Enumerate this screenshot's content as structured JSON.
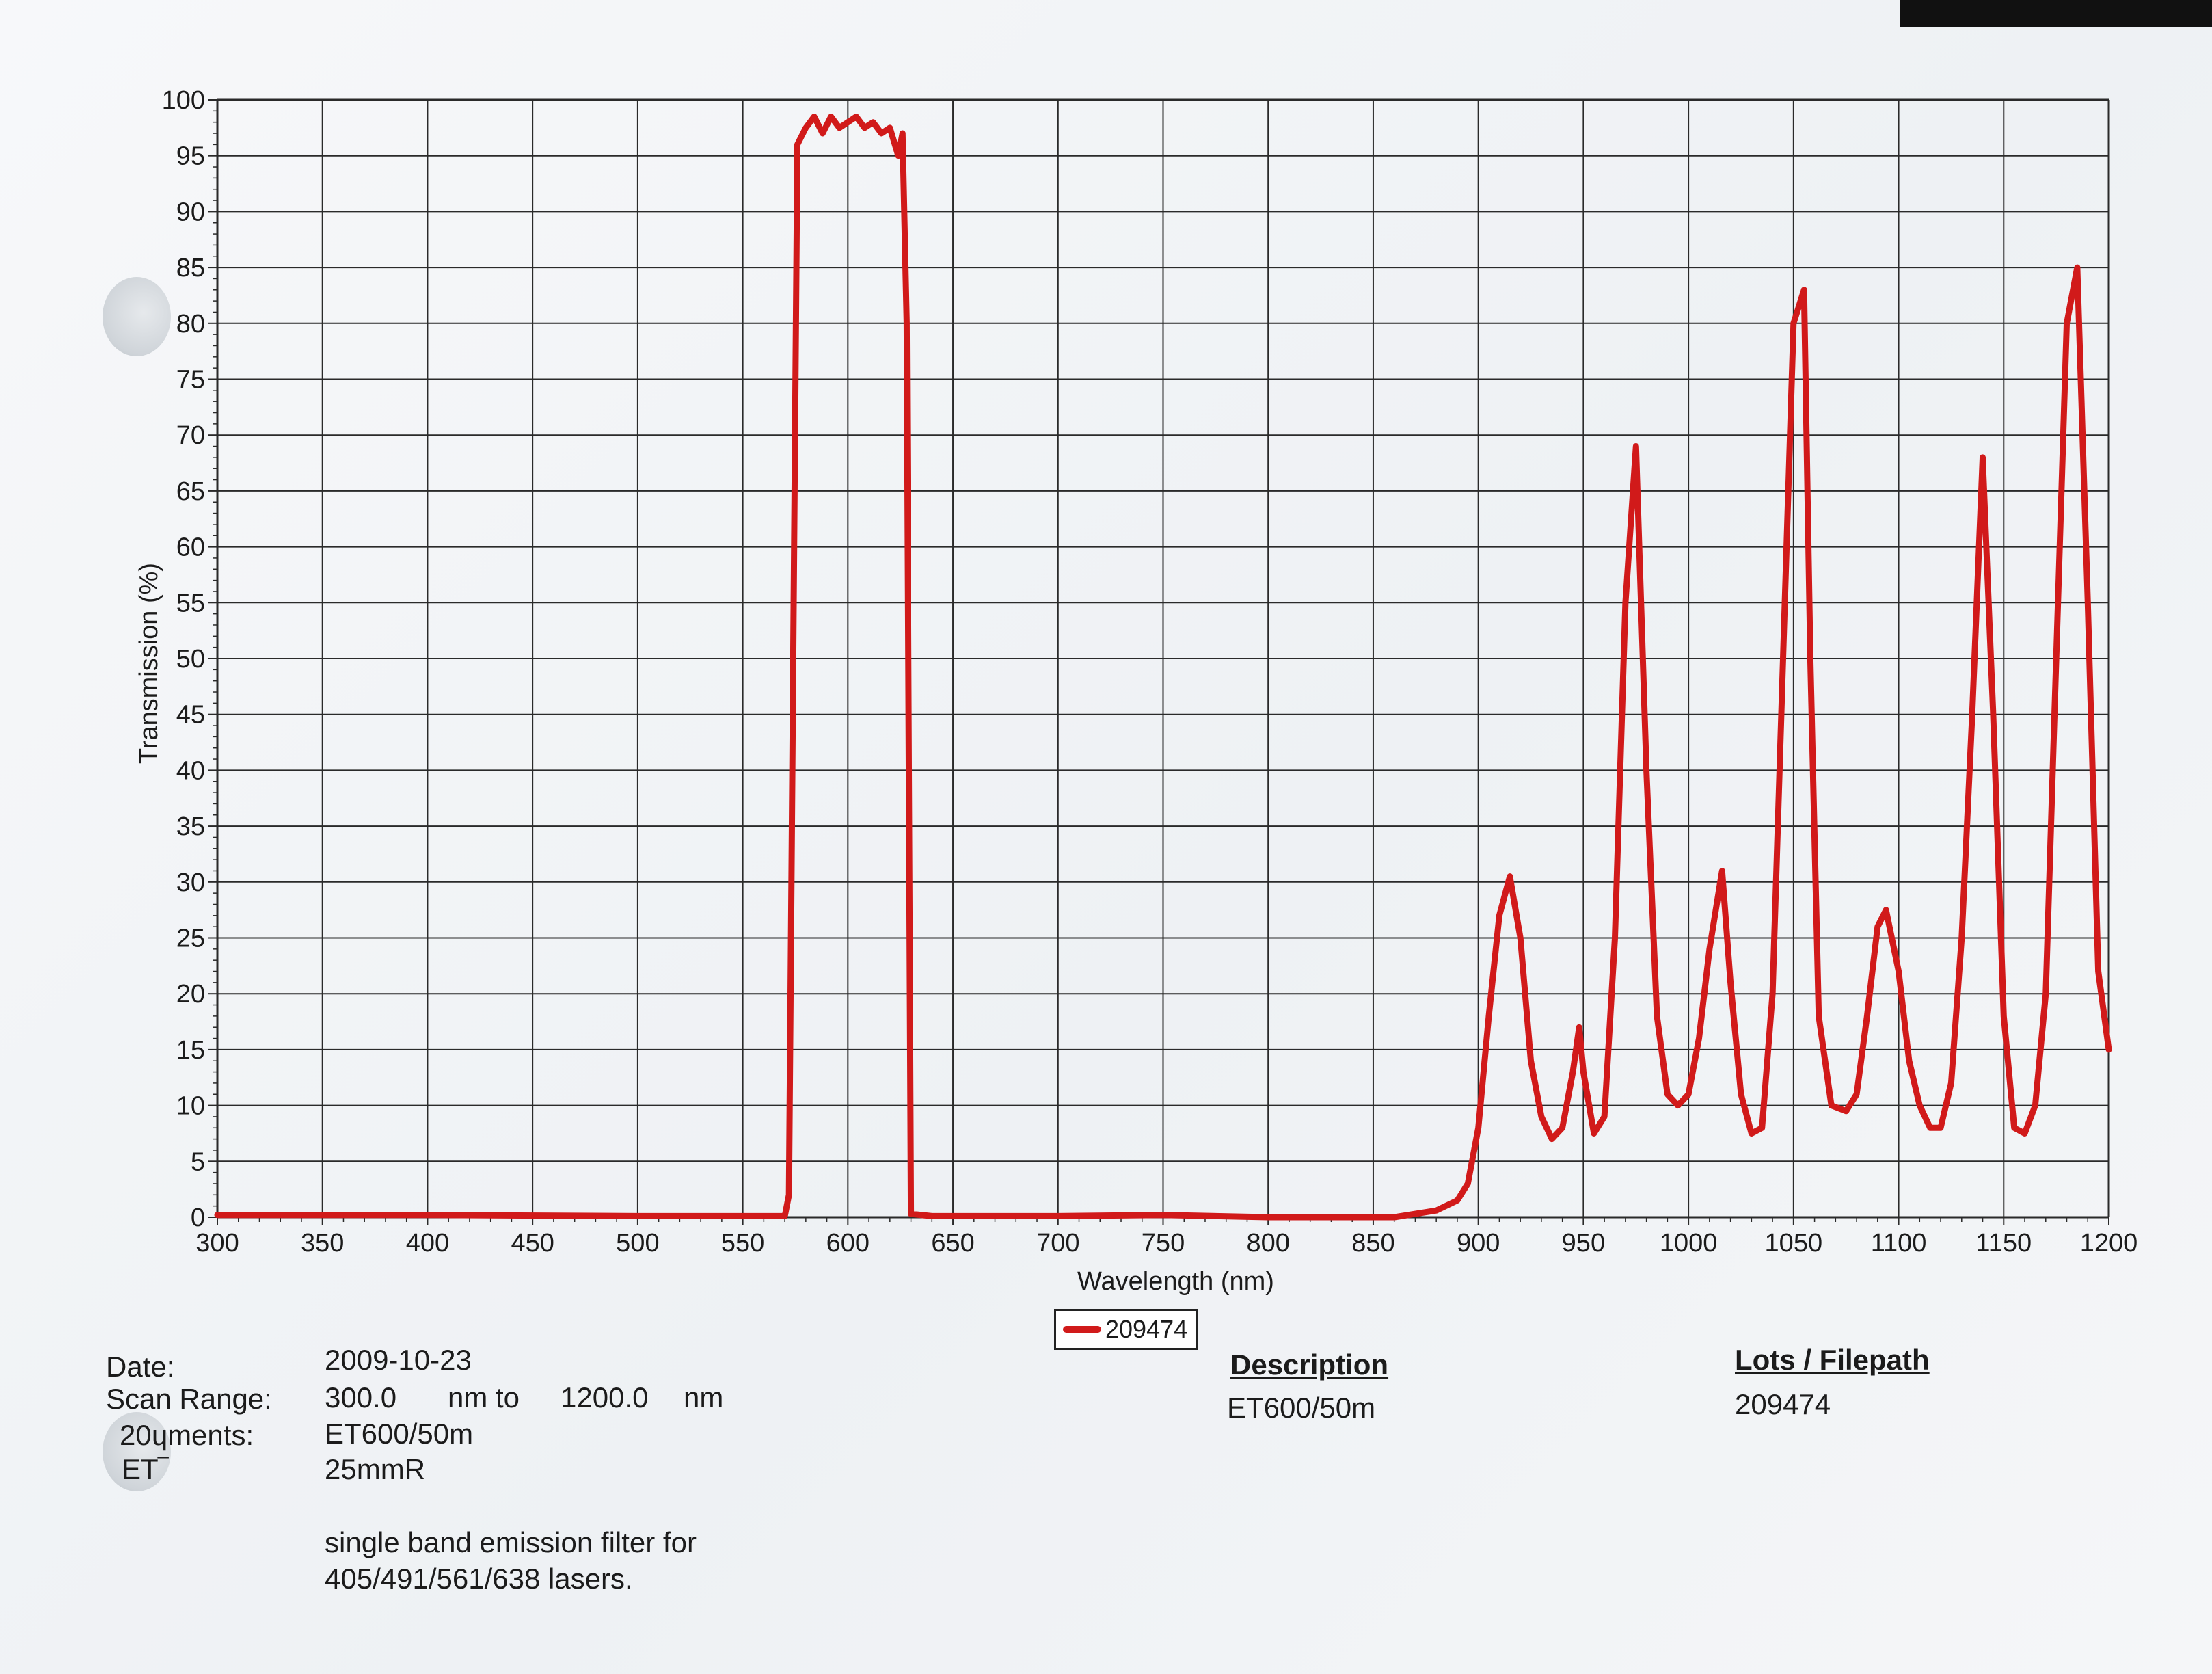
{
  "colors": {
    "series_line": "#d11a1a",
    "grid": "#2a2a2a",
    "paper": "#f4f6f8",
    "text": "#1b1b1b"
  },
  "chart_data": {
    "type": "line",
    "title": "",
    "xlabel": "Wavelength (nm)",
    "ylabel": "Transmission (%)",
    "xlim": [
      300,
      1200
    ],
    "ylim": [
      0,
      100
    ],
    "x_ticks": [
      "300",
      "350",
      "400",
      "450",
      "500",
      "550",
      "600",
      "650",
      "700",
      "750",
      "800",
      "850",
      "900",
      "950",
      "1000",
      "1050",
      "1100",
      "1150",
      "1200"
    ],
    "y_ticks": [
      "0",
      "5",
      "10",
      "15",
      "20",
      "25",
      "30",
      "35",
      "40",
      "45",
      "50",
      "55",
      "60",
      "65",
      "70",
      "75",
      "80",
      "85",
      "90",
      "95",
      "100"
    ],
    "grid": true,
    "legend_position": "bottom-center",
    "series": [
      {
        "name": "209474",
        "x": [
          300,
          400,
          500,
          570,
          572,
          574,
          576,
          580,
          584,
          588,
          592,
          596,
          600,
          604,
          608,
          612,
          616,
          620,
          624,
          626,
          628,
          630,
          640,
          700,
          750,
          800,
          860,
          870,
          880,
          890,
          895,
          900,
          905,
          910,
          915,
          920,
          925,
          930,
          935,
          940,
          945,
          948,
          950,
          955,
          960,
          965,
          970,
          975,
          980,
          985,
          990,
          995,
          1000,
          1005,
          1010,
          1016,
          1020,
          1025,
          1030,
          1035,
          1040,
          1045,
          1050,
          1055,
          1058,
          1062,
          1068,
          1075,
          1080,
          1085,
          1090,
          1094,
          1100,
          1105,
          1110,
          1115,
          1120,
          1125,
          1130,
          1135,
          1140,
          1145,
          1150,
          1155,
          1160,
          1165,
          1170,
          1175,
          1180,
          1185,
          1190,
          1195,
          1200
        ],
        "values": [
          0.2,
          0.2,
          0.1,
          0.1,
          2,
          50,
          96,
          97.5,
          98.5,
          97,
          98.5,
          97.5,
          98,
          98.5,
          97.5,
          98,
          97,
          97.5,
          95,
          97,
          80,
          0.3,
          0.1,
          0.1,
          0.2,
          0,
          0,
          0.3,
          0.6,
          1.5,
          3,
          8,
          18,
          27,
          30.5,
          25,
          14,
          9,
          7,
          8,
          13,
          17,
          13,
          7.5,
          9,
          25,
          55,
          69,
          40,
          18,
          11,
          10,
          11,
          16,
          24,
          31,
          21,
          11,
          7.5,
          8,
          20,
          50,
          80,
          83,
          50,
          18,
          10,
          9.5,
          11,
          18,
          26,
          27.5,
          22,
          14,
          10,
          8,
          8,
          12,
          25,
          45,
          68,
          45,
          18,
          8,
          7.5,
          10,
          20,
          50,
          80,
          85,
          55,
          22,
          15
        ]
      }
    ]
  },
  "legend": {
    "label": "209474"
  },
  "info": {
    "date_label": "Date:",
    "date_value": "2009-10-23",
    "scan_range_label": "Scan Range:",
    "scan_start": "300.0",
    "nm_to": "nm to",
    "scan_end": "1200.0",
    "nm_unit": "nm",
    "comments_label": "20ɥments:",
    "comments_line1": "ET600/50m",
    "et_label": "ET‾",
    "comments_line2": "25mmR",
    "comments_line3": "single band emission filter for",
    "comments_line4": "405/491/561/638 lasers.",
    "description_header": "Description",
    "description_value": "ET600/50m",
    "lots_header": "Lots / Filepath",
    "lots_value": "209474"
  }
}
